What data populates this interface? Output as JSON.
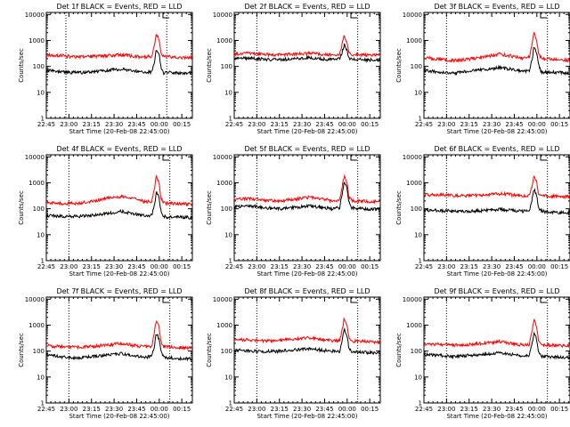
{
  "figure": {
    "x_axis_title": "Start Time (20-Feb-08 22:45:00)",
    "y_axis_title": "Counts/sec",
    "x_ticks": [
      "22:45",
      "23:00",
      "23:15",
      "23:30",
      "23:45",
      "00:00",
      "00:15"
    ],
    "y_ticks": [
      "1",
      "10",
      "100",
      "1000",
      "10000"
    ]
  },
  "colors": {
    "events": "#000000",
    "lld": "#ff0000",
    "axes": "#000000"
  },
  "chart_data": [
    {
      "type": "line",
      "title": "Det 1f BLACK = Events, RED = LLD",
      "xlabel": "Start Time (20-Feb-08 22:45:00)",
      "ylabel": "Counts/sec",
      "x_range_minutes": [
        0,
        97
      ],
      "ylim": [
        1,
        12000
      ],
      "y_scale": "log",
      "vlines_minutes": [
        13,
        80
      ],
      "series": [
        {
          "name": "Events",
          "x": [
            0,
            10,
            20,
            30,
            40,
            50,
            60,
            65,
            70,
            72,
            73,
            75,
            76,
            78,
            80,
            85,
            90,
            97
          ],
          "values": [
            70,
            62,
            58,
            60,
            70,
            80,
            65,
            60,
            60,
            150,
            500,
            280,
            100,
            55,
            58,
            58,
            55,
            60
          ]
        },
        {
          "name": "LLD",
          "x": [
            0,
            10,
            20,
            30,
            40,
            50,
            60,
            65,
            70,
            72,
            73,
            75,
            76,
            78,
            80,
            85,
            90,
            97
          ],
          "values": [
            280,
            260,
            230,
            240,
            260,
            280,
            240,
            230,
            250,
            700,
            2000,
            1000,
            350,
            230,
            240,
            230,
            220,
            230
          ]
        }
      ]
    },
    {
      "type": "line",
      "title": "Det 2f BLACK = Events, RED = LLD",
      "xlabel": "Start Time (20-Feb-08 22:45:00)",
      "ylabel": "Counts/sec",
      "x_range_minutes": [
        0,
        97
      ],
      "ylim": [
        1,
        12000
      ],
      "y_scale": "log",
      "vlines_minutes": [
        15,
        82
      ],
      "series": [
        {
          "name": "Events",
          "x": [
            0,
            10,
            20,
            30,
            40,
            50,
            60,
            65,
            70,
            72,
            73,
            75,
            76,
            78,
            80,
            85,
            90,
            97
          ],
          "values": [
            200,
            210,
            190,
            180,
            200,
            220,
            190,
            180,
            190,
            400,
            700,
            400,
            220,
            190,
            190,
            180,
            175,
            180
          ]
        },
        {
          "name": "LLD",
          "x": [
            0,
            10,
            20,
            30,
            40,
            50,
            60,
            65,
            70,
            72,
            73,
            75,
            76,
            78,
            80,
            85,
            90,
            97
          ],
          "values": [
            300,
            320,
            290,
            280,
            300,
            320,
            290,
            280,
            300,
            900,
            1500,
            800,
            330,
            290,
            290,
            280,
            270,
            280
          ]
        }
      ]
    },
    {
      "type": "line",
      "title": "Det 3f BLACK = Events, RED = LLD",
      "xlabel": "Start Time (20-Feb-08 22:45:00)",
      "ylabel": "Counts/sec",
      "x_range_minutes": [
        0,
        97
      ],
      "ylim": [
        1,
        12000
      ],
      "y_scale": "log",
      "vlines_minutes": [
        15,
        82
      ],
      "series": [
        {
          "name": "Events",
          "x": [
            0,
            10,
            20,
            30,
            40,
            50,
            60,
            65,
            70,
            72,
            73,
            75,
            76,
            78,
            80,
            85,
            90,
            97
          ],
          "values": [
            70,
            60,
            55,
            65,
            75,
            90,
            75,
            65,
            70,
            200,
            600,
            320,
            120,
            60,
            58,
            60,
            58,
            55
          ]
        },
        {
          "name": "LLD",
          "x": [
            0,
            10,
            20,
            30,
            40,
            50,
            60,
            65,
            70,
            72,
            73,
            75,
            76,
            78,
            80,
            85,
            90,
            97
          ],
          "values": [
            220,
            190,
            170,
            190,
            230,
            300,
            240,
            210,
            230,
            800,
            2200,
            1000,
            330,
            200,
            190,
            190,
            180,
            170
          ]
        }
      ]
    },
    {
      "type": "line",
      "title": "Det 4f BLACK = Events, RED = LLD",
      "xlabel": "Start Time (20-Feb-08 22:45:00)",
      "ylabel": "Counts/sec",
      "x_range_minutes": [
        0,
        97
      ],
      "ylim": [
        1,
        12000
      ],
      "y_scale": "log",
      "vlines_minutes": [
        15,
        82
      ],
      "series": [
        {
          "name": "Events",
          "x": [
            0,
            10,
            20,
            30,
            40,
            50,
            60,
            65,
            70,
            72,
            73,
            75,
            76,
            78,
            80,
            85,
            90,
            97
          ],
          "values": [
            55,
            50,
            50,
            55,
            65,
            80,
            60,
            55,
            55,
            150,
            450,
            250,
            90,
            50,
            48,
            50,
            48,
            45
          ]
        },
        {
          "name": "LLD",
          "x": [
            0,
            10,
            20,
            30,
            40,
            50,
            60,
            65,
            70,
            72,
            73,
            75,
            76,
            78,
            80,
            85,
            90,
            97
          ],
          "values": [
            170,
            160,
            160,
            190,
            260,
            300,
            230,
            190,
            190,
            700,
            1900,
            900,
            280,
            170,
            160,
            160,
            155,
            150
          ]
        }
      ]
    },
    {
      "type": "line",
      "title": "Det 5f BLACK = Events, RED = LLD",
      "xlabel": "Start Time (20-Feb-08 22:45:00)",
      "ylabel": "Counts/sec",
      "x_range_minutes": [
        0,
        97
      ],
      "ylim": [
        1,
        12000
      ],
      "y_scale": "log",
      "vlines_minutes": [
        15,
        82
      ],
      "series": [
        {
          "name": "Events",
          "x": [
            0,
            10,
            20,
            30,
            40,
            50,
            60,
            65,
            70,
            72,
            73,
            75,
            76,
            78,
            80,
            85,
            90,
            97
          ],
          "values": [
            120,
            130,
            110,
            100,
            110,
            130,
            110,
            100,
            110,
            500,
            1000,
            600,
            180,
            110,
            105,
            100,
            95,
            100
          ]
        },
        {
          "name": "LLD",
          "x": [
            0,
            10,
            20,
            30,
            40,
            50,
            60,
            65,
            70,
            72,
            73,
            75,
            76,
            78,
            80,
            85,
            90,
            97
          ],
          "values": [
            230,
            250,
            220,
            200,
            230,
            280,
            230,
            200,
            220,
            900,
            1800,
            1000,
            300,
            210,
            200,
            200,
            190,
            200
          ]
        }
      ]
    },
    {
      "type": "line",
      "title": "Det 6f BLACK = Events, RED = LLD",
      "xlabel": "Start Time (20-Feb-08 22:45:00)",
      "ylabel": "Counts/sec",
      "x_range_minutes": [
        0,
        97
      ],
      "ylim": [
        1,
        12000
      ],
      "y_scale": "log",
      "vlines_minutes": [
        15,
        82
      ],
      "series": [
        {
          "name": "Events",
          "x": [
            0,
            10,
            20,
            30,
            40,
            50,
            60,
            65,
            70,
            72,
            73,
            75,
            76,
            78,
            80,
            85,
            90,
            97
          ],
          "values": [
            90,
            85,
            80,
            80,
            85,
            95,
            85,
            80,
            85,
            250,
            600,
            320,
            120,
            80,
            78,
            75,
            72,
            70
          ]
        },
        {
          "name": "LLD",
          "x": [
            0,
            10,
            20,
            30,
            40,
            50,
            60,
            65,
            70,
            72,
            73,
            75,
            76,
            78,
            80,
            85,
            90,
            97
          ],
          "values": [
            350,
            340,
            320,
            320,
            340,
            380,
            340,
            320,
            330,
            900,
            2000,
            1000,
            400,
            320,
            310,
            300,
            290,
            290
          ]
        }
      ]
    },
    {
      "type": "line",
      "title": "Det 7f BLACK = Events, RED = LLD",
      "xlabel": "Start Time (20-Feb-08 22:45:00)",
      "ylabel": "Counts/sec",
      "x_range_minutes": [
        0,
        97
      ],
      "ylim": [
        1,
        12000
      ],
      "y_scale": "log",
      "vlines_minutes": [
        15,
        82
      ],
      "series": [
        {
          "name": "Events",
          "x": [
            0,
            10,
            20,
            30,
            40,
            50,
            60,
            65,
            70,
            72,
            73,
            75,
            76,
            78,
            80,
            85,
            90,
            97
          ],
          "values": [
            70,
            60,
            55,
            60,
            70,
            80,
            65,
            60,
            60,
            180,
            500,
            280,
            100,
            55,
            55,
            55,
            52,
            50
          ]
        },
        {
          "name": "LLD",
          "x": [
            0,
            10,
            20,
            30,
            40,
            50,
            60,
            65,
            70,
            72,
            73,
            75,
            76,
            78,
            80,
            85,
            90,
            97
          ],
          "values": [
            160,
            150,
            140,
            150,
            170,
            200,
            160,
            150,
            150,
            600,
            1600,
            800,
            250,
            150,
            145,
            140,
            135,
            130
          ]
        }
      ]
    },
    {
      "type": "line",
      "title": "Det 8f BLACK = Events, RED = LLD",
      "xlabel": "Start Time (20-Feb-08 22:45:00)",
      "ylabel": "Counts/sec",
      "x_range_minutes": [
        0,
        97
      ],
      "ylim": [
        1,
        12000
      ],
      "y_scale": "log",
      "vlines_minutes": [
        15,
        82
      ],
      "series": [
        {
          "name": "Events",
          "x": [
            0,
            10,
            20,
            30,
            40,
            50,
            60,
            65,
            70,
            72,
            73,
            75,
            76,
            78,
            80,
            85,
            90,
            97
          ],
          "values": [
            110,
            100,
            95,
            100,
            110,
            125,
            105,
            100,
            100,
            300,
            700,
            380,
            150,
            95,
            92,
            90,
            88,
            85
          ]
        },
        {
          "name": "LLD",
          "x": [
            0,
            10,
            20,
            30,
            40,
            50,
            60,
            65,
            70,
            72,
            73,
            75,
            76,
            78,
            80,
            85,
            90,
            97
          ],
          "values": [
            280,
            270,
            250,
            260,
            290,
            320,
            270,
            250,
            260,
            800,
            1900,
            950,
            360,
            250,
            240,
            240,
            230,
            220
          ]
        }
      ]
    },
    {
      "type": "line",
      "title": "Det 9f BLACK = Events, RED = LLD",
      "xlabel": "Start Time (20-Feb-08 22:45:00)",
      "ylabel": "Counts/sec",
      "x_range_minutes": [
        0,
        97
      ],
      "ylim": [
        1,
        12000
      ],
      "y_scale": "log",
      "vlines_minutes": [
        15,
        82
      ],
      "series": [
        {
          "name": "Events",
          "x": [
            0,
            10,
            20,
            30,
            40,
            50,
            60,
            65,
            70,
            72,
            73,
            75,
            76,
            78,
            80,
            85,
            90,
            97
          ],
          "values": [
            75,
            68,
            62,
            68,
            75,
            85,
            72,
            66,
            68,
            200,
            500,
            270,
            110,
            65,
            62,
            60,
            58,
            55
          ]
        },
        {
          "name": "LLD",
          "x": [
            0,
            10,
            20,
            30,
            40,
            50,
            60,
            65,
            70,
            72,
            73,
            75,
            76,
            78,
            80,
            85,
            90,
            97
          ],
          "values": [
            190,
            180,
            170,
            180,
            200,
            230,
            190,
            175,
            180,
            650,
            1700,
            850,
            280,
            180,
            170,
            170,
            165,
            160
          ]
        }
      ]
    }
  ]
}
